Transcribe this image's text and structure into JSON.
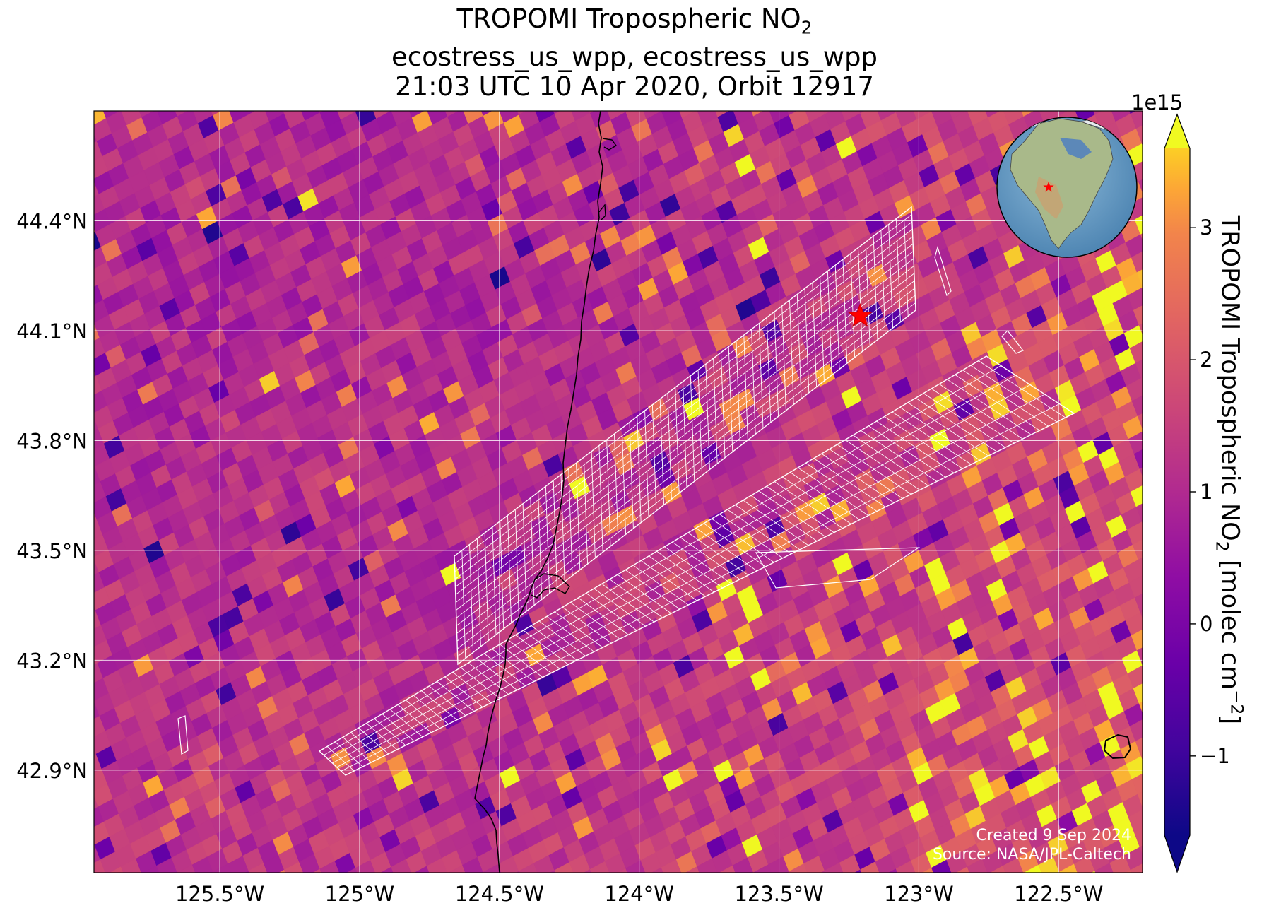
{
  "title": {
    "line1": "TROPOMI Tropospheric NO",
    "line1_sub": "2",
    "line2": "ecostress_us_wpp, ecostress_us_wpp",
    "line3": "21:03 UTC 10 Apr 2020, Orbit 12917"
  },
  "map": {
    "lon_range": [
      -125.95,
      -122.2
    ],
    "lat_range": [
      42.62,
      44.7
    ],
    "target_marker": {
      "lon": -123.21,
      "lat": 44.14,
      "color": "#ff0000",
      "shape": "star-icon"
    },
    "lon_ticks": [
      {
        "value": -125.5,
        "label": "125.5°W"
      },
      {
        "value": -125.0,
        "label": "125°W"
      },
      {
        "value": -124.5,
        "label": "124.5°W"
      },
      {
        "value": -124.0,
        "label": "124°W"
      },
      {
        "value": -123.5,
        "label": "123.5°W"
      },
      {
        "value": -123.0,
        "label": "123°W"
      },
      {
        "value": -122.5,
        "label": "122.5°W"
      }
    ],
    "lat_ticks": [
      {
        "value": 44.4,
        "label": "44.4°N"
      },
      {
        "value": 44.1,
        "label": "44.1°N"
      },
      {
        "value": 43.8,
        "label": "43.8°N"
      },
      {
        "value": 43.5,
        "label": "43.5°N"
      },
      {
        "value": 43.2,
        "label": "43.2°N"
      },
      {
        "value": 42.9,
        "label": "42.9°N"
      }
    ],
    "gridlines": true,
    "colormap": "plasma",
    "inset_globe": {
      "position": "top-right",
      "marker": "star-icon",
      "marker_color": "#ff0000"
    }
  },
  "colorbar": {
    "label_main": "TROPOMI Tropospheric NO",
    "label_sub": "2",
    "label_units": " [molec cm",
    "label_sup": "−2",
    "label_end": "]",
    "exponent": "1e15",
    "range": [
      -1.6,
      3.6
    ],
    "extend": "both",
    "ticks": [
      {
        "value": 3,
        "label": "3"
      },
      {
        "value": 2,
        "label": "2"
      },
      {
        "value": 1,
        "label": "1"
      },
      {
        "value": 0,
        "label": "0"
      },
      {
        "value": -1,
        "label": "−1"
      }
    ]
  },
  "credits": {
    "created": "Created 9 Sep 2024",
    "source": "Source: NASA/JPL-Caltech"
  }
}
